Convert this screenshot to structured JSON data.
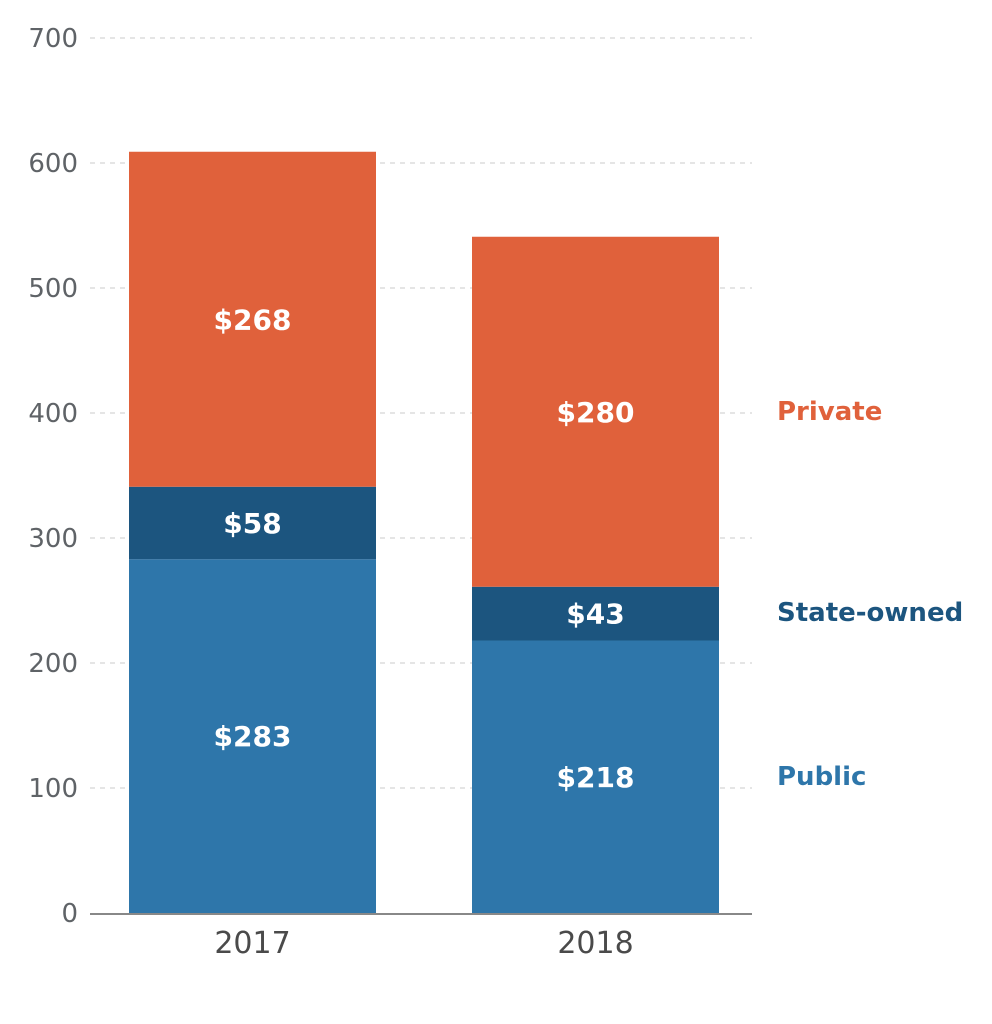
{
  "chart_data": {
    "type": "bar",
    "stacked": true,
    "title": "",
    "xlabel": "",
    "ylabel": "",
    "ylim": [
      0,
      700
    ],
    "yticks": [
      0,
      100,
      200,
      300,
      400,
      500,
      600,
      700
    ],
    "grid": true,
    "categories": [
      "2017",
      "2018"
    ],
    "series": [
      {
        "name": "Public",
        "color": "#2e76aa",
        "values": [
          283,
          218
        ],
        "labels": [
          "$283",
          "$218"
        ]
      },
      {
        "name": "State-owned",
        "color": "#1c557f",
        "values": [
          58,
          43
        ],
        "labels": [
          "$58",
          "$43"
        ]
      },
      {
        "name": "Private",
        "color": "#e0613b",
        "values": [
          268,
          280
        ],
        "labels": [
          "$268",
          "$280"
        ]
      }
    ],
    "legend": "right, inline labels beside last bar"
  },
  "colors": {
    "axis": "#888888",
    "grid": "#d5d5d5",
    "tick_text": "#5f6367"
  }
}
